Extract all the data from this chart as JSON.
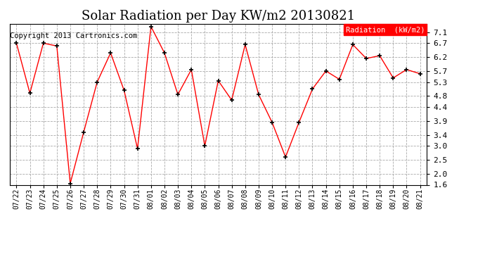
{
  "title": "Solar Radiation per Day KW/m2 20130821",
  "copyright": "Copyright 2013 Cartronics.com",
  "legend_label": "Radiation  (kW/m2)",
  "dates": [
    "07/22",
    "07/23",
    "07/24",
    "07/25",
    "07/26",
    "07/27",
    "07/28",
    "07/29",
    "07/30",
    "07/31",
    "08/01",
    "08/02",
    "08/03",
    "08/04",
    "08/05",
    "08/06",
    "08/07",
    "08/08",
    "08/09",
    "08/10",
    "08/11",
    "08/12",
    "08/13",
    "08/14",
    "08/15",
    "08/16",
    "08/17",
    "08/18",
    "08/19",
    "08/20",
    "08/21"
  ],
  "values": [
    6.7,
    4.9,
    6.7,
    6.6,
    1.65,
    3.5,
    5.3,
    6.35,
    5.0,
    2.9,
    7.3,
    6.35,
    4.85,
    5.75,
    3.0,
    5.35,
    4.65,
    6.65,
    4.85,
    3.85,
    2.6,
    3.85,
    5.05,
    5.7,
    5.4,
    6.65,
    6.15,
    6.25,
    5.45,
    5.75,
    5.6
  ],
  "ylim": [
    1.6,
    7.4
  ],
  "yticks": [
    1.6,
    2.0,
    2.5,
    3.0,
    3.4,
    3.9,
    4.4,
    4.8,
    5.3,
    5.7,
    6.2,
    6.7,
    7.1
  ],
  "line_color": "red",
  "marker": "+",
  "marker_color": "black",
  "legend_bg": "red",
  "legend_fg": "white",
  "background_color": "white",
  "grid_color": "#aaaaaa",
  "title_fontsize": 13,
  "copyright_fontsize": 7.5
}
